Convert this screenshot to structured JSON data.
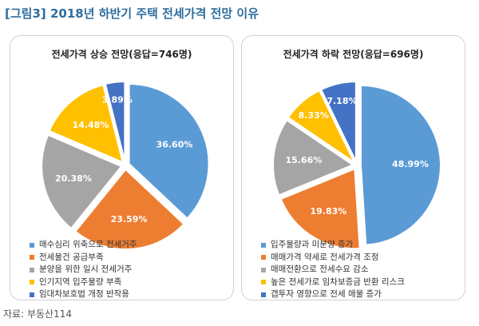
{
  "figure_title": "[그림3] 2018년 하반기 주택 전세가격 전망 이유",
  "source": "자료: 부동산114",
  "chart_data": [
    {
      "type": "pie",
      "title": "전세가격 상승 전망(응답=746명)",
      "slices": [
        {
          "label": "매수심리 위축으로 전세거주",
          "value": 36.6,
          "display": "36.60%",
          "color": "#5b9bd5"
        },
        {
          "label": "전세물건 공급부족",
          "value": 23.59,
          "display": "23.59%",
          "color": "#ed7d31"
        },
        {
          "label": "분양을 위한 일시 전세거주",
          "value": 20.38,
          "display": "20.38%",
          "color": "#a5a5a5"
        },
        {
          "label": "인기지역 입주물량 부족",
          "value": 14.48,
          "display": "14.48%",
          "color": "#ffc000"
        },
        {
          "label": "임대차보호법 개정 반작용",
          "value": 3.89,
          "display": "3.89%",
          "color": "#4472c4"
        }
      ],
      "legend_position": "bottom"
    },
    {
      "type": "pie",
      "title": "전세가격 하락 전망(응답=696명)",
      "slices": [
        {
          "label": "입주물량과 미분양 증가",
          "value": 48.99,
          "display": "48.99%",
          "color": "#5b9bd5"
        },
        {
          "label": "매매가격 약세로 전세가격 조정",
          "value": 19.83,
          "display": "19.83%",
          "color": "#ed7d31"
        },
        {
          "label": "매매전환으로 전세수요 감소",
          "value": 15.66,
          "display": "15.66%",
          "color": "#a5a5a5"
        },
        {
          "label": "높은 전세가로 임차보증금 반환 리스크",
          "value": 8.33,
          "display": "8.33%",
          "color": "#ffc000"
        },
        {
          "label": "갭투자 영향으로 전세 매물 증가",
          "value": 7.18,
          "display": "7.18%",
          "color": "#4472c4"
        }
      ],
      "legend_position": "bottom"
    }
  ]
}
